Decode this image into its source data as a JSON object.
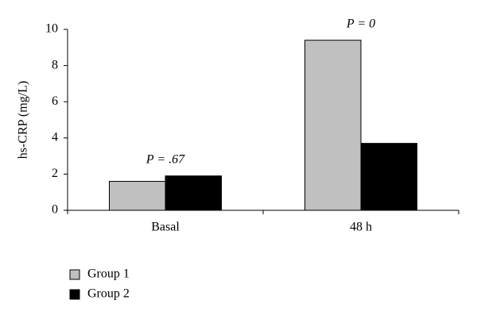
{
  "chart_data": {
    "type": "bar",
    "y_label": "hs-CRP (mg/L)",
    "categories": [
      "Basal",
      "48 h"
    ],
    "series": [
      {
        "name": "Group 1",
        "color": "#c0c0c0",
        "values": [
          1.6,
          9.4
        ]
      },
      {
        "name": "Group 2",
        "color": "#000000",
        "values": [
          1.9,
          3.7
        ]
      }
    ],
    "annotations": [
      "P = .67",
      "P = 0"
    ],
    "ylim": [
      0,
      10
    ],
    "yticks": [
      0,
      2,
      4,
      6,
      8,
      10
    ],
    "legend": "bottom-left"
  }
}
